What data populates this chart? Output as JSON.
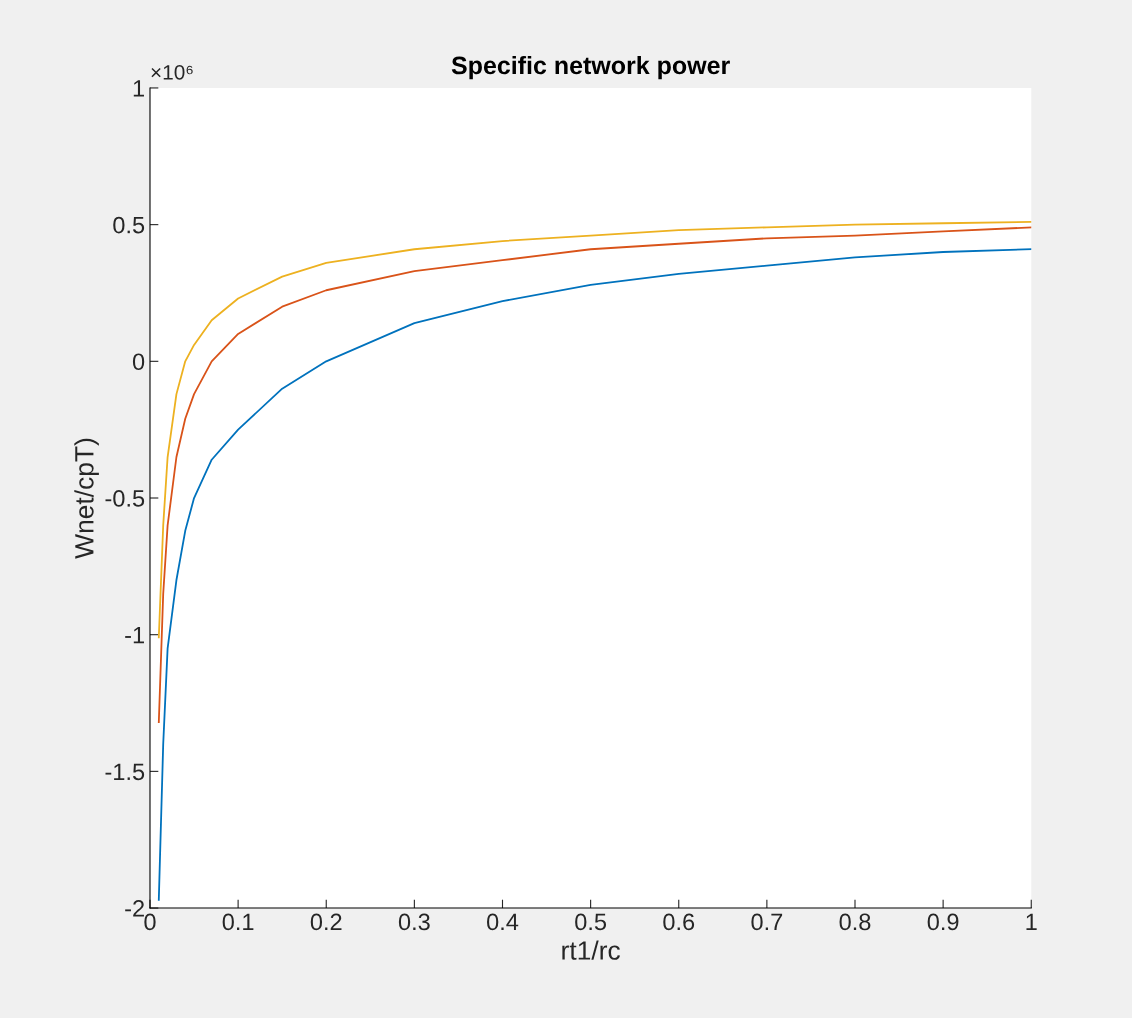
{
  "chart_data": {
    "type": "line",
    "title": "Specific network power",
    "xlabel": "rt1/rc",
    "ylabel": "Wnet/cpT)",
    "annotations": [
      "×10⁶"
    ],
    "xlim": [
      0,
      1
    ],
    "xticks": [
      0,
      0.1,
      0.2,
      0.3,
      0.4,
      0.5,
      0.6,
      0.7,
      0.8,
      0.9,
      1
    ],
    "ylim": [
      -2,
      1
    ],
    "yticks": [
      -2,
      -1.5,
      -1,
      -0.5,
      0,
      0.5,
      1
    ],
    "x": [
      0.01,
      0.015,
      0.02,
      0.03,
      0.04,
      0.05,
      0.07,
      0.1,
      0.15,
      0.2,
      0.3,
      0.4,
      0.5,
      0.6,
      0.7,
      0.8,
      0.9,
      1.0
    ],
    "series": [
      {
        "color": "#0072bd",
        "values": [
          -1.97,
          -1.4,
          -1.05,
          -0.8,
          -0.62,
          -0.5,
          -0.36,
          -0.25,
          -0.1,
          0.0,
          0.14,
          0.22,
          0.28,
          0.32,
          0.35,
          0.38,
          0.4,
          0.41
        ]
      },
      {
        "color": "#d95319",
        "values": [
          -1.32,
          -0.85,
          -0.6,
          -0.35,
          -0.21,
          -0.12,
          0.0,
          0.1,
          0.2,
          0.26,
          0.33,
          0.37,
          0.41,
          0.43,
          0.45,
          0.46,
          0.475,
          0.49
        ]
      },
      {
        "color": "#edb120",
        "values": [
          -1.01,
          -0.6,
          -0.35,
          -0.12,
          0.0,
          0.06,
          0.15,
          0.23,
          0.31,
          0.36,
          0.41,
          0.44,
          0.46,
          0.48,
          0.49,
          0.5,
          0.505,
          0.51
        ]
      }
    ],
    "grid": false,
    "legend": false,
    "line_style": "solid",
    "marker": "none"
  }
}
